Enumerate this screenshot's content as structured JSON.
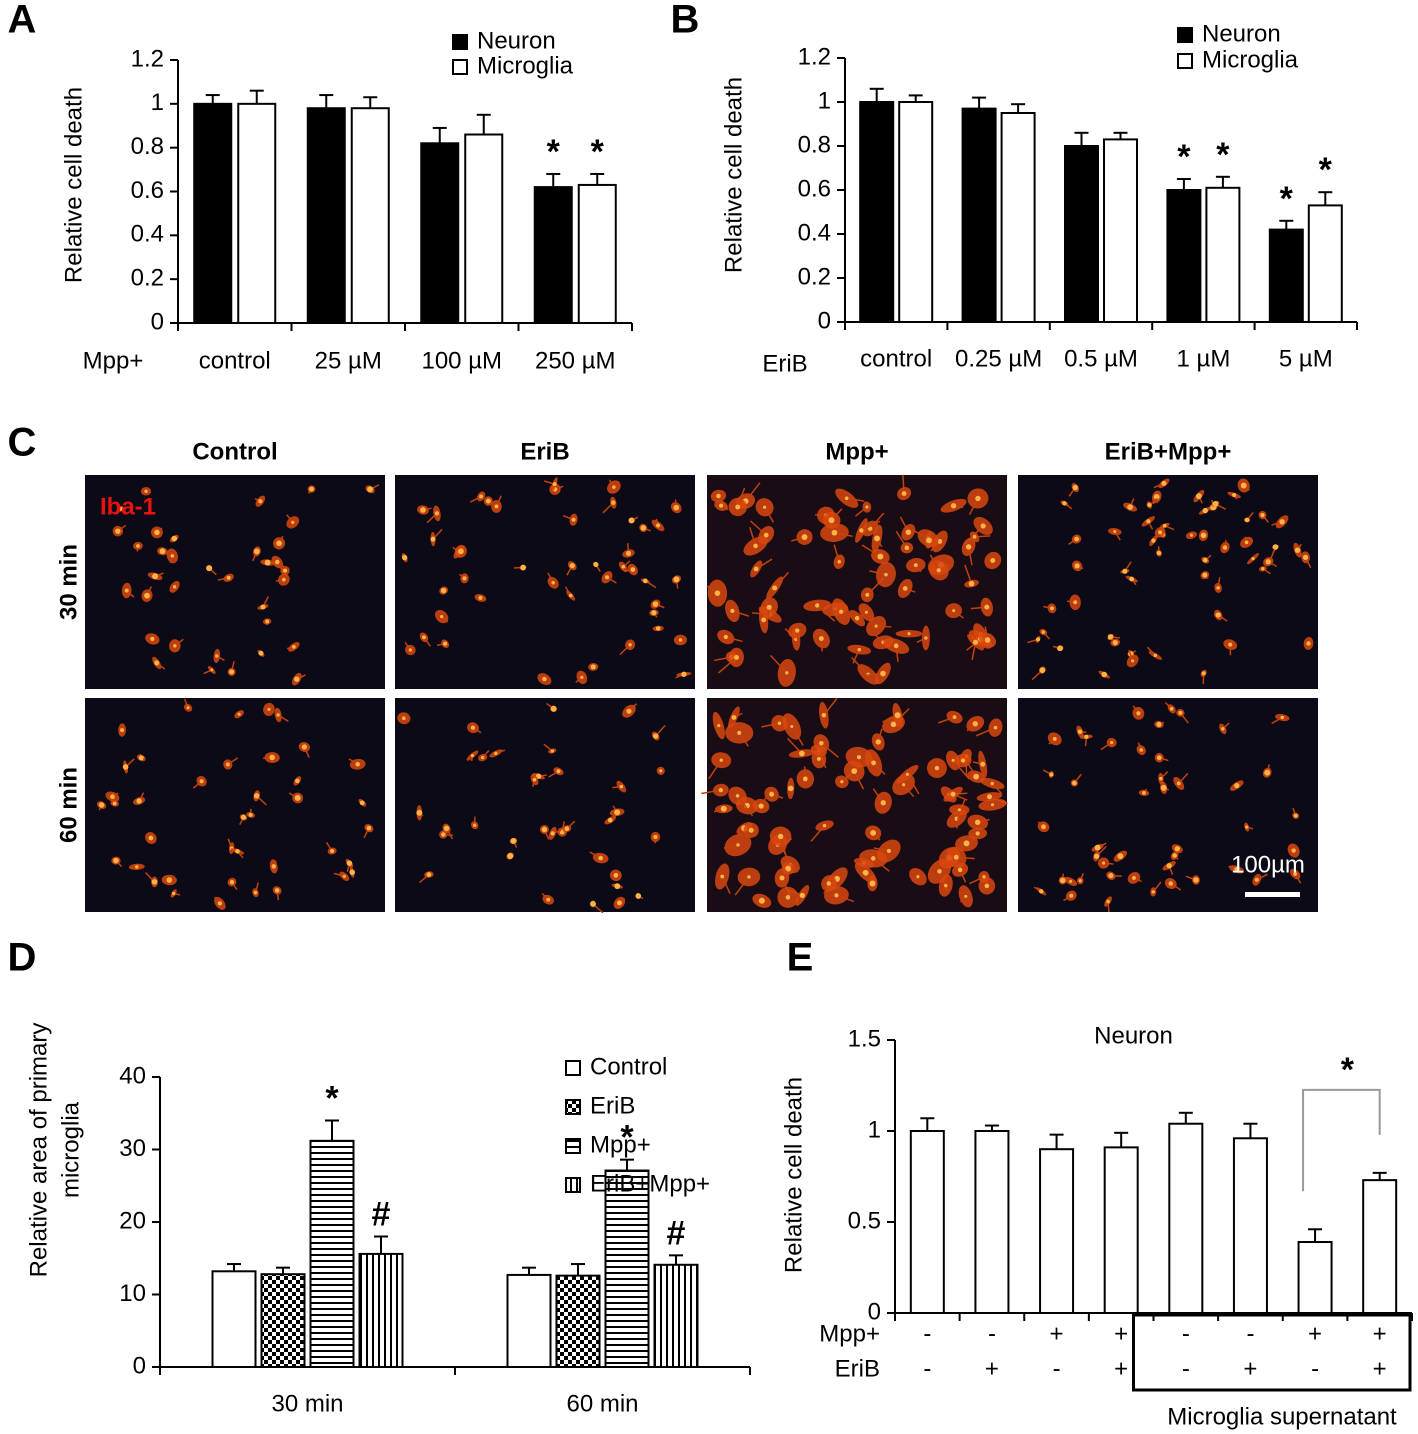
{
  "chart_data": [
    {
      "panel": "A",
      "type": "bar",
      "xlabel": "Mpp+",
      "ylabel": "Relative cell death",
      "categories": [
        "control",
        "25 µM",
        "100 µM",
        "250 µM"
      ],
      "series": [
        {
          "name": "Neuron",
          "color": "#000000",
          "values": [
            1.0,
            0.98,
            0.82,
            0.62
          ],
          "errors": [
            0.04,
            0.06,
            0.07,
            0.06
          ],
          "significance": [
            null,
            null,
            null,
            "*"
          ]
        },
        {
          "name": "Microglia",
          "color": "#ffffff",
          "values": [
            1.0,
            0.98,
            0.86,
            0.63
          ],
          "errors": [
            0.06,
            0.05,
            0.09,
            0.05
          ],
          "significance": [
            null,
            null,
            null,
            "*"
          ]
        }
      ],
      "ylim": [
        0,
        1.2
      ],
      "yticks": [
        0,
        0.2,
        0.4,
        0.6,
        0.8,
        1,
        1.2
      ]
    },
    {
      "panel": "B",
      "type": "bar",
      "xlabel": "EriB",
      "ylabel": "Relative cell death",
      "categories": [
        "control",
        "0.25 µM",
        "0.5 µM",
        "1 µM",
        "5 µM"
      ],
      "series": [
        {
          "name": "Neuron",
          "color": "#000000",
          "values": [
            1.0,
            0.97,
            0.8,
            0.6,
            0.42
          ],
          "errors": [
            0.06,
            0.05,
            0.06,
            0.05,
            0.04
          ],
          "significance": [
            null,
            null,
            null,
            "*",
            "*"
          ]
        },
        {
          "name": "Microglia",
          "color": "#ffffff",
          "values": [
            1.0,
            0.95,
            0.83,
            0.61,
            0.53
          ],
          "errors": [
            0.03,
            0.04,
            0.03,
            0.05,
            0.06
          ],
          "significance": [
            null,
            null,
            null,
            "*",
            "*"
          ]
        }
      ],
      "ylim": [
        0,
        1.2
      ],
      "yticks": [
        0,
        0.2,
        0.4,
        0.6,
        0.8,
        1,
        1.2
      ]
    },
    {
      "panel": "D",
      "type": "bar",
      "ylabel": [
        "Relative area of primary",
        "microglia"
      ],
      "categories": [
        "30 min",
        "60 min"
      ],
      "series": [
        {
          "name": "Control",
          "color": "#ffffff",
          "pattern": "none",
          "values": [
            13.2,
            12.7
          ],
          "errors": [
            1.0,
            1.0
          ],
          "significance": [
            null,
            null
          ]
        },
        {
          "name": "EriB",
          "color": "#ffffff",
          "pattern": "checker",
          "values": [
            12.8,
            12.6
          ],
          "errors": [
            0.9,
            1.6
          ],
          "significance": [
            null,
            null
          ]
        },
        {
          "name": "Mpp+",
          "color": "#ffffff",
          "pattern": "hstripe",
          "values": [
            31.2,
            27.1
          ],
          "errors": [
            2.8,
            1.5
          ],
          "significance": [
            "*",
            "*"
          ]
        },
        {
          "name": "EriB+Mpp+",
          "color": "#ffffff",
          "pattern": "vstripe",
          "values": [
            15.6,
            14.1
          ],
          "errors": [
            2.4,
            1.3
          ],
          "significance": [
            "#",
            "#"
          ]
        }
      ],
      "ylim": [
        0,
        40
      ],
      "yticks": [
        0,
        10,
        20,
        30,
        40
      ]
    },
    {
      "panel": "E",
      "type": "bar",
      "title": "Neuron",
      "ylabel": "Relative cell death",
      "categories": [
        null,
        null,
        null,
        null,
        null,
        null,
        null,
        null
      ],
      "series": [
        {
          "color": "#ffffff",
          "values": [
            1.0,
            1.0,
            0.9,
            0.91,
            1.04,
            0.96,
            0.39,
            0.73
          ],
          "errors": [
            0.07,
            0.03,
            0.08,
            0.08,
            0.06,
            0.08,
            0.07,
            0.04
          ]
        }
      ],
      "conditions": [
        {
          "name": "Mpp+",
          "values": [
            "-",
            "-",
            "+",
            "+",
            "-",
            "-",
            "+",
            "+"
          ]
        },
        {
          "name": "EriB",
          "values": [
            "-",
            "+",
            "-",
            "+",
            "-",
            "+",
            "-",
            "+"
          ]
        }
      ],
      "group_label": "Microglia supernatant",
      "significance": "*",
      "ylim": [
        0,
        1.5
      ],
      "yticks": [
        0,
        0.5,
        1,
        1.5
      ]
    }
  ],
  "image_panel": {
    "panel": "C",
    "columns": [
      "Control",
      "EriB",
      "Mpp+",
      "EriB+Mpp+"
    ],
    "rows": [
      "30 min",
      "60 min"
    ],
    "stain": "Iba-1",
    "scale_bar": "100µm"
  }
}
